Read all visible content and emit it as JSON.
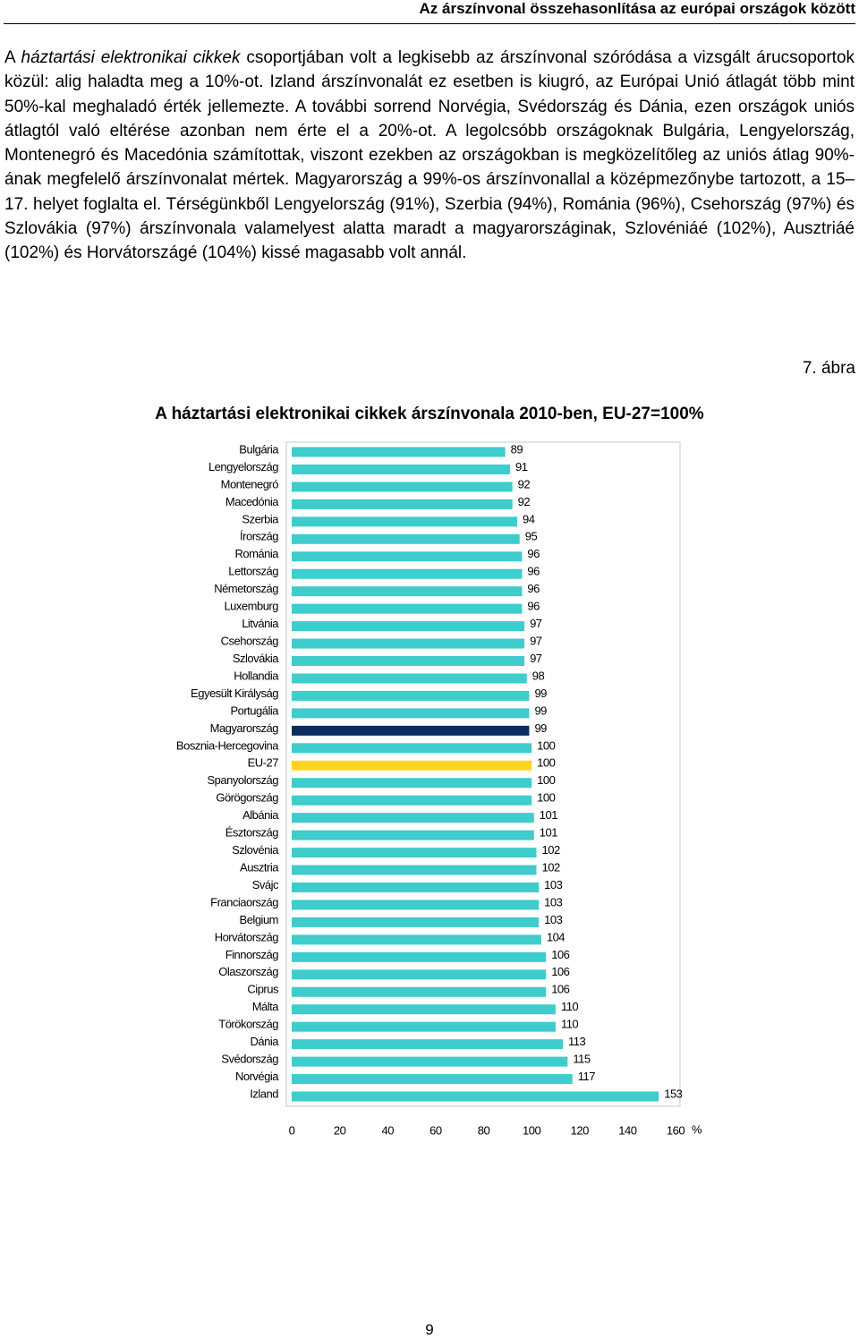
{
  "header": {
    "title": "Az árszínvonal összehasonlítása az európai országok között"
  },
  "paragraph": [
    "A ",
    "háztartási elektronikai cikkek",
    " csoportjában volt a legkisebb az árszínvonal szóródása a vizsgált árucsoportok közül: alig haladta meg a 10%-ot. Izland árszínvonalát ez esetben is kiugró, az Európai Unió átlagát több mint 50%-kal meghaladó érték jellemezte. A további sorrend Norvégia, Svédország és Dánia, ezen országok uniós átlagtól való eltérése azonban nem érte el a 20%-ot. A legolcsóbb országoknak Bulgária, Lengyelország, Montenegró és Macedónia számítottak, viszont ezekben az országokban is megközelítőleg az uniós átlag 90%-ának megfelelő árszínvonalat mértek. Magyarország a 99%-os árszínvonallal a középmezőnybe tartozott, a 15–17. helyet foglalta el. Térségünkből Lengyelország (91%), Szerbia (94%), Románia (96%), Csehország (97%) és Szlovákia (97%) árszínvonala valamelyest alatta maradt a magyarországinak, Szlovéniáé (102%), Ausztriáé (102%) és Horvátországé (104%) kissé magasabb volt annál."
  ],
  "figure_label": "7. ábra",
  "chart_data": {
    "type": "hbar",
    "title": "A háztartási elektronikai cikkek árszínvonala 2010-ben, EU-27=100%",
    "x_label": "%",
    "categories": [
      "Bulgária",
      "Lengyelország",
      "Montenegró",
      "Macedónia",
      "Szerbia",
      "Írország",
      "Románia",
      "Lettország",
      "Németország",
      "Luxemburg",
      "Litvánia",
      "Csehország",
      "Szlovákia",
      "Hollandia",
      "Egyesült Királyság",
      "Portugália",
      "Magyarország",
      "Bosznia-Hercegovina",
      "EU-27",
      "Spanyolország",
      "Görögország",
      "Albánia",
      "Észtország",
      "Szlovénia",
      "Ausztria",
      "Svájc",
      "Franciaország",
      "Belgium",
      "Horvátország",
      "Finnország",
      "Olaszország",
      "Ciprus",
      "Málta",
      "Törökország",
      "Dánia",
      "Svédország",
      "Norvégia",
      "Izland"
    ],
    "values": [
      89,
      91,
      92,
      92,
      94,
      95,
      96,
      96,
      96,
      96,
      97,
      97,
      97,
      98,
      99,
      99,
      99,
      100,
      100,
      100,
      100,
      101,
      101,
      102,
      102,
      103,
      103,
      103,
      104,
      106,
      106,
      106,
      110,
      110,
      113,
      115,
      117,
      153
    ],
    "colors": [
      "#3ecccc",
      "#3ecccc",
      "#3ecccc",
      "#3ecccc",
      "#3ecccc",
      "#3ecccc",
      "#3ecccc",
      "#3ecccc",
      "#3ecccc",
      "#3ecccc",
      "#3ecccc",
      "#3ecccc",
      "#3ecccc",
      "#3ecccc",
      "#3ecccc",
      "#3ecccc",
      "#0b2d5e",
      "#3ecccc",
      "#ffd51c",
      "#3ecccc",
      "#3ecccc",
      "#3ecccc",
      "#3ecccc",
      "#3ecccc",
      "#3ecccc",
      "#3ecccc",
      "#3ecccc",
      "#3ecccc",
      "#3ecccc",
      "#3ecccc",
      "#3ecccc",
      "#3ecccc",
      "#3ecccc",
      "#3ecccc",
      "#3ecccc",
      "#3ecccc",
      "#3ecccc",
      "#3ecccc"
    ],
    "xlim": [
      0,
      160
    ],
    "xticks": [
      0,
      20,
      40,
      60,
      80,
      100,
      120,
      140,
      160
    ]
  },
  "page_number": "9"
}
